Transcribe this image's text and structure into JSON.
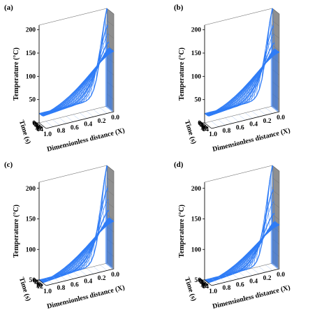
{
  "chart_data": [
    {
      "panel": "(a)",
      "type": "surface3d",
      "zlabel": "Temperature (°C)",
      "ylabel": "Time (s)",
      "xlabel": "Dimensionless distance  (X)",
      "z_ticks": [
        "0",
        "50",
        "100",
        "150",
        "200"
      ],
      "t_ticks": [
        "0",
        "2",
        "4",
        "6",
        "8",
        "10",
        "12",
        "14"
      ],
      "x_ticks": [
        "1.0",
        "0.8",
        "0.6",
        "0.4",
        "0.2",
        "0.0"
      ],
      "zlim": [
        0,
        210
      ],
      "peak_temperature": 210,
      "plateau_temperature": 130,
      "colors": {
        "surface": "#2f7cf6",
        "wall": "#a8a8a8",
        "grid": "#6b6b6b"
      }
    },
    {
      "panel": "(b)",
      "type": "surface3d",
      "zlabel": "Temperature (°C)",
      "ylabel": "Time (s)",
      "xlabel": "Dimensionless distance  (X)",
      "z_ticks": [
        "0",
        "50",
        "100",
        "150",
        "200"
      ],
      "t_ticks": [
        "0",
        "2",
        "4",
        "6",
        "8",
        "10",
        "12",
        "14"
      ],
      "x_ticks": [
        "1.0",
        "0.8",
        "0.6",
        "0.4",
        "0.2",
        "0.0"
      ],
      "zlim": [
        0,
        210
      ],
      "peak_temperature": 210,
      "plateau_temperature": 128,
      "colors": {
        "surface": "#2f7cf6",
        "wall": "#a8a8a8",
        "grid": "#6b6b6b"
      }
    },
    {
      "panel": "(c)",
      "type": "surface3d",
      "zlabel": "Temperature (°C)",
      "ylabel": "Time (s)",
      "xlabel": "Dimensionless distance  (X)",
      "z_ticks": [
        "50",
        "100",
        "150",
        "200"
      ],
      "t_ticks": [
        "0",
        "2",
        "4",
        "6",
        "8",
        "10",
        "12"
      ],
      "x_ticks": [
        "1.0",
        "0.8",
        "0.6",
        "0.4",
        "0.2",
        "0.0"
      ],
      "zlim": [
        50,
        210
      ],
      "peak_temperature": 210,
      "plateau_temperature": 128,
      "colors": {
        "surface": "#2f7cf6",
        "wall": "#a8a8a8",
        "grid": "#6b6b6b"
      }
    },
    {
      "panel": "(d)",
      "type": "surface3d",
      "zlabel": "Temperature (°C)",
      "ylabel": "Time (s)",
      "xlabel": "Dimensionless distance  (X)",
      "z_ticks": [
        "50",
        "100",
        "150",
        "200"
      ],
      "t_ticks": [
        "0",
        "2",
        "4",
        "6",
        "8",
        "10",
        "12",
        "14"
      ],
      "x_ticks": [
        "1.0",
        "0.8",
        "0.6",
        "0.4",
        "0.2",
        "0.0"
      ],
      "zlim": [
        50,
        210
      ],
      "peak_temperature": 210,
      "plateau_temperature": 122,
      "colors": {
        "surface": "#2f7cf6",
        "wall": "#a8a8a8",
        "grid": "#6b6b6b"
      }
    }
  ]
}
